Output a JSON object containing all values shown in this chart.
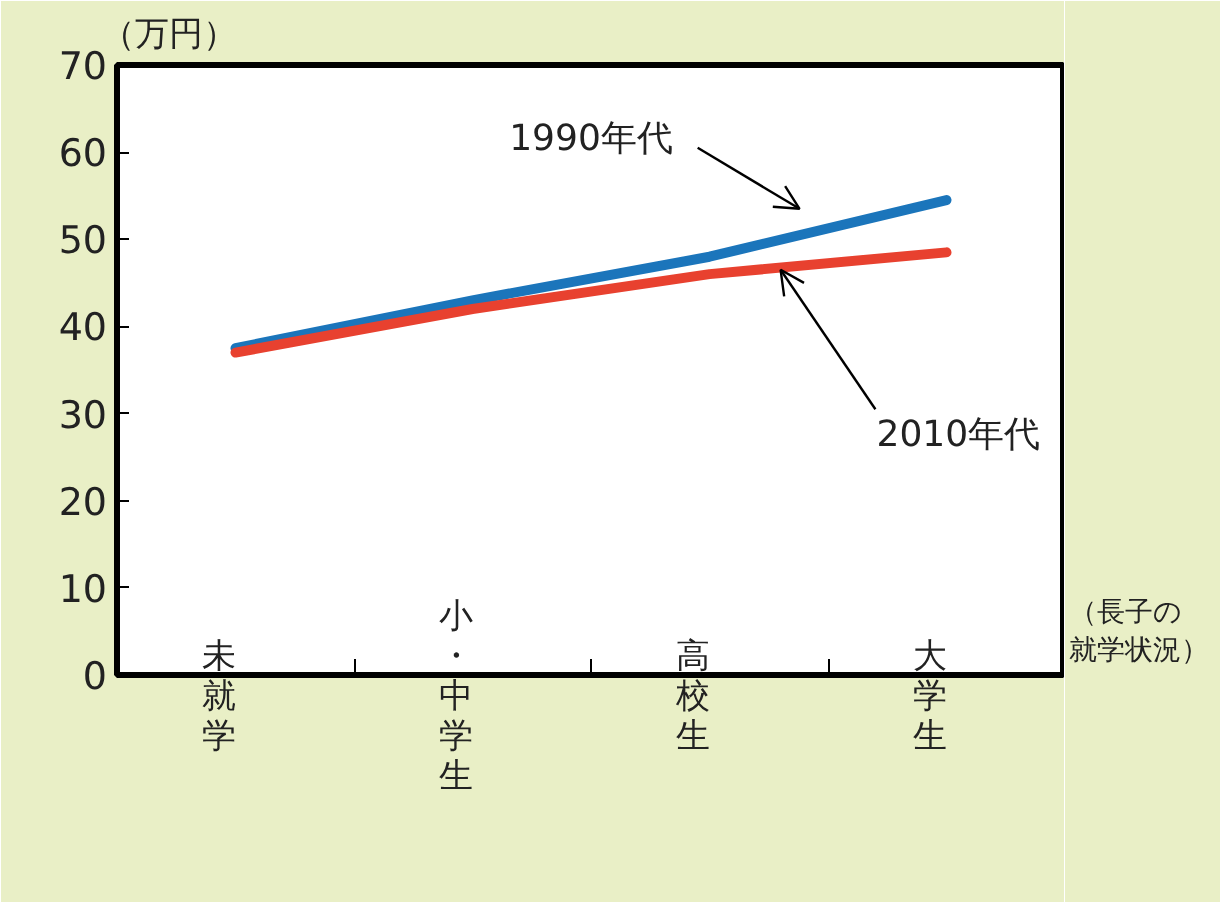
{
  "chart_data": {
    "type": "line",
    "categories": [
      "未就学",
      "小・中学生",
      "高校生",
      "大学生"
    ],
    "series": [
      {
        "name": "1990年代",
        "color": "#1b75bb",
        "values": [
          37.5,
          43,
          48,
          54.5
        ]
      },
      {
        "name": "2010年代",
        "color": "#e8412f",
        "values": [
          37,
          42,
          46,
          48.5
        ]
      }
    ],
    "ylabel": "（万円）",
    "xlabel": "（長子の就学状況）",
    "ylim": [
      0,
      70
    ],
    "yticks": [
      0,
      10,
      20,
      30,
      40,
      50,
      60,
      70
    ],
    "grid": false,
    "legend": false,
    "marker": "none",
    "line_style": "solid"
  }
}
